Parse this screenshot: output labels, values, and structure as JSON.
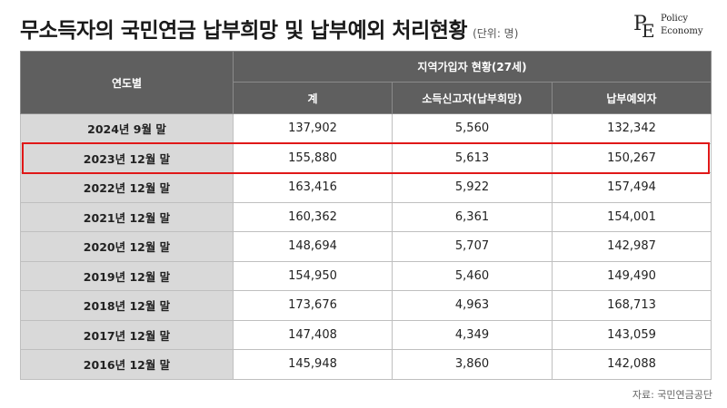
{
  "title": "무소득자의 국민연금 납부희망 및 납부예외 처리현황",
  "unit": "(단위: 명)",
  "logo": {
    "mark_p": "P",
    "mark_e": "E",
    "line1": "Policy",
    "line2": "Economy"
  },
  "table": {
    "row_header": "연도별",
    "group_header": "지역가입자 현황(27세)",
    "columns": [
      "계",
      "소득신고자(납부희망)",
      "납부예외자"
    ],
    "rows": [
      {
        "year": "2024년 9월 말",
        "values": [
          "137,902",
          "5,560",
          "132,342"
        ]
      },
      {
        "year": "2023년 12월 말",
        "values": [
          "155,880",
          "5,613",
          "150,267"
        ]
      },
      {
        "year": "2022년 12월 말",
        "values": [
          "163,416",
          "5,922",
          "157,494"
        ]
      },
      {
        "year": "2021년 12월 말",
        "values": [
          "160,362",
          "6,361",
          "154,001"
        ]
      },
      {
        "year": "2020년 12월 말",
        "values": [
          "148,694",
          "5,707",
          "142,987"
        ]
      },
      {
        "year": "2019년 12월 말",
        "values": [
          "154,950",
          "5,460",
          "149,490"
        ]
      },
      {
        "year": "2018년 12월 말",
        "values": [
          "173,676",
          "4,963",
          "168,713"
        ]
      },
      {
        "year": "2017년 12월 말",
        "values": [
          "147,408",
          "4,349",
          "143,059"
        ]
      },
      {
        "year": "2016년 12월 말",
        "values": [
          "145,948",
          "3,860",
          "142,088"
        ]
      }
    ],
    "highlighted_row": "2023년 12월 말"
  },
  "source": "자료: 국민연금공단",
  "colors": {
    "header_bg": "#5f5f5f",
    "year_bg": "#d9d9d9",
    "highlight": "#e01818"
  }
}
